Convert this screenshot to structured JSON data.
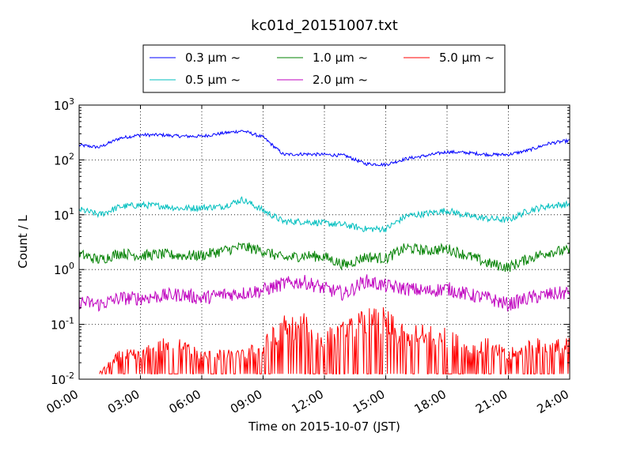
{
  "chart_data": {
    "type": "line",
    "title": "kc01d_20151007.txt",
    "xlabel": "Time on 2015-10-07 (JST)",
    "ylabel": "Count / L",
    "y_scale": "log",
    "ylim": [
      0.01,
      1000
    ],
    "xlim": [
      "00:00",
      "24:00"
    ],
    "x_tick_labels": [
      "00:00",
      "03:00",
      "06:00",
      "09:00",
      "12:00",
      "15:00",
      "18:00",
      "21:00",
      "24:00"
    ],
    "y_tick_labels": [
      {
        "base": "10",
        "exp": "-2",
        "value": 0.01
      },
      {
        "base": "10",
        "exp": "-1",
        "value": 0.1
      },
      {
        "base": "10",
        "exp": "0",
        "value": 1
      },
      {
        "base": "10",
        "exp": "1",
        "value": 10
      },
      {
        "base": "10",
        "exp": "2",
        "value": 100
      },
      {
        "base": "10",
        "exp": "3",
        "value": 1000
      }
    ],
    "grid": true,
    "legend_placement": "above-plot",
    "x_hours": [
      0,
      1,
      2,
      3,
      4,
      5,
      6,
      7,
      8,
      9,
      10,
      11,
      12,
      13,
      14,
      15,
      16,
      17,
      18,
      19,
      20,
      21,
      22,
      23,
      24
    ],
    "series": [
      {
        "name": "0.3 μm ~",
        "color": "#0000ff",
        "values": [
          185,
          170,
          250,
          285,
          285,
          270,
          270,
          305,
          340,
          260,
          125,
          128,
          125,
          120,
          85,
          82,
          105,
          120,
          140,
          135,
          125,
          125,
          150,
          200,
          225
        ]
      },
      {
        "name": "0.5 μm ~",
        "color": "#00bfbf",
        "values": [
          12.5,
          10,
          14,
          15,
          14.5,
          13,
          13.5,
          14,
          19,
          12,
          7.5,
          7.5,
          7,
          6.5,
          5.5,
          5.5,
          9.5,
          10.5,
          12,
          9.5,
          8.5,
          8,
          12,
          14.5,
          15.5
        ]
      },
      {
        "name": "1.0 μm ~",
        "color": "#008000",
        "values": [
          1.9,
          1.5,
          2,
          1.8,
          1.9,
          1.8,
          1.8,
          2.2,
          2.6,
          2.2,
          1.6,
          1.8,
          1.7,
          1.2,
          1.7,
          1.6,
          2.5,
          2.2,
          2.4,
          1.8,
          1.3,
          1.1,
          1.6,
          2.1,
          2.2
        ]
      },
      {
        "name": "2.0 μm ~",
        "color": "#bf00bf",
        "values": [
          0.26,
          0.23,
          0.3,
          0.3,
          0.33,
          0.35,
          0.3,
          0.35,
          0.37,
          0.42,
          0.55,
          0.6,
          0.45,
          0.36,
          0.62,
          0.5,
          0.45,
          0.4,
          0.45,
          0.35,
          0.3,
          0.23,
          0.3,
          0.35,
          0.38
        ]
      },
      {
        "name": "5.0 μm ~",
        "color": "#ff0000",
        "values": [
          null,
          0.013,
          0.02,
          0.02,
          0.025,
          0.025,
          0.02,
          0.02,
          0.02,
          0.025,
          0.04,
          0.04,
          0.03,
          0.035,
          0.045,
          0.045,
          0.03,
          0.035,
          0.03,
          0.025,
          0.025,
          0.02,
          0.025,
          0.025,
          0.025
        ]
      }
    ]
  }
}
